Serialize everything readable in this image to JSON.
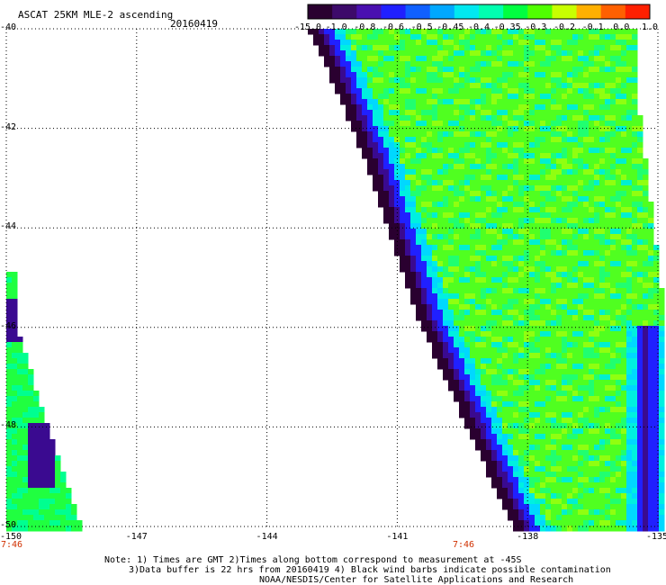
{
  "header": {
    "title": "ASCAT 25KM MLE-2 ascending",
    "date": "20160419"
  },
  "colorbar": {
    "labels": [
      "-15.0",
      "-1.0",
      "-0.8",
      "-0.6",
      "-0.5",
      "-0.45",
      "-0.4",
      "-0.35",
      "-0.3",
      "-0.2",
      "-0.1",
      "0.0",
      "1.0"
    ],
    "colors": [
      "#2a0030",
      "#3d0a6a",
      "#4a10b0",
      "#2020ff",
      "#1060ff",
      "#00a8ff",
      "#00e8f0",
      "#00ffb0",
      "#00ff40",
      "#50ff00",
      "#c8ff00",
      "#ffb000",
      "#ff6000",
      "#ff2000"
    ]
  },
  "axes": {
    "lat_labels": [
      "-40",
      "-42",
      "-44",
      "-46",
      "-48",
      "-50"
    ],
    "lon_labels": [
      "-150",
      "-147",
      "-144",
      "-141",
      "-138",
      "-135"
    ],
    "time_labels": [
      {
        "lon": -150,
        "text": "7:46"
      },
      {
        "lon": -139.6,
        "text": "7:46"
      }
    ]
  },
  "footer": {
    "note_line1": "Note: 1) Times are GMT 2)Times along bottom correspond to measurement at -45S",
    "note_line2": "3)Data buffer is 22 hrs from 20160419 4) Black wind barbs indicate possible contamination",
    "credit": "NOAA/NESDIS/Center for Satellite Applications and Research"
  }
}
